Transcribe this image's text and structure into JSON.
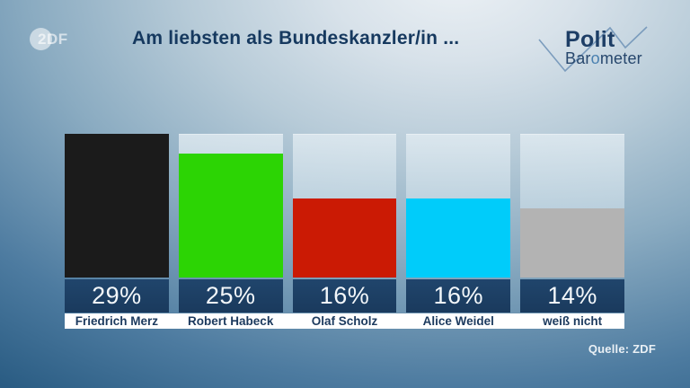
{
  "header": {
    "title": "Am liebsten als Bundeskanzler/in ...",
    "zdf_logo_text": "2DF",
    "polit_logo": {
      "line1": "Polit",
      "line2_parts": {
        "a": "Bar",
        "b": "o",
        "c": "meter"
      }
    }
  },
  "chart_data": {
    "type": "bar",
    "title": "Am liebsten als Bundeskanzler/in ...",
    "categories": [
      "Friedrich Merz",
      "Robert Habeck",
      "Olaf Scholz",
      "Alice Weidel",
      "weiß nicht"
    ],
    "values": [
      29,
      25,
      16,
      16,
      14
    ],
    "value_labels": [
      "29%",
      "25%",
      "16%",
      "16%",
      "14%"
    ],
    "unit": "%",
    "ylim": [
      0,
      29
    ],
    "grid": false,
    "legend": "none",
    "bar_colors": [
      "#1b1b1b",
      "#2cd404",
      "#cb1a04",
      "#00ccfa",
      "#b3b3b3"
    ],
    "colors": {
      "value_band": "#1c3d60",
      "value_text": "#f3f7fa",
      "name_strip_bg": "#ffffff",
      "name_text": "#1c3a5e",
      "title_text": "#16395f",
      "track": "#b7cddb",
      "background_top": "#e7eef3",
      "background_bottom": "#2b5d84"
    }
  },
  "footer": {
    "source": "Quelle: ZDF"
  }
}
